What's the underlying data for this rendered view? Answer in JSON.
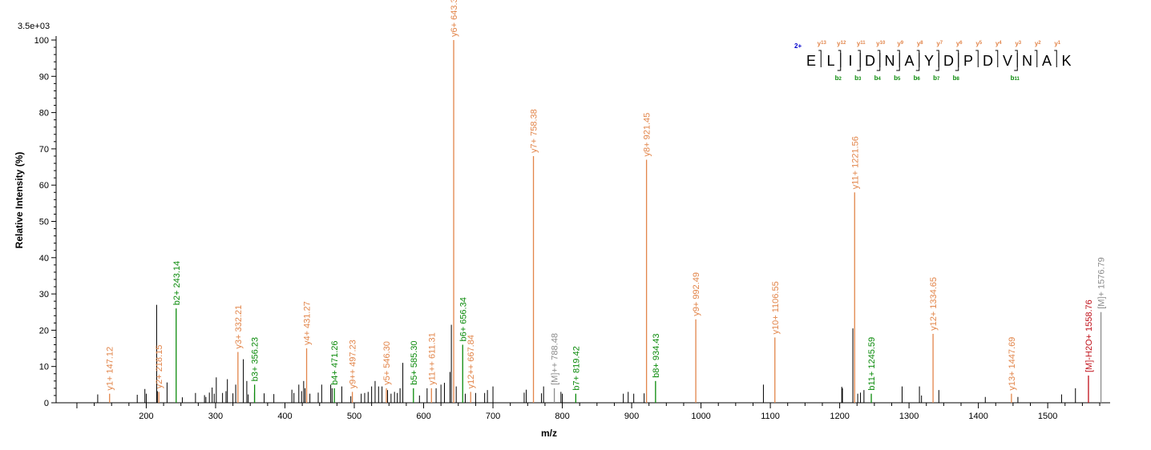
{
  "chart_data": {
    "type": "bar",
    "title": "",
    "xlabel": "m/z",
    "ylabel": "Relative   Intensity (%)",
    "scale_label": "3.5e+03",
    "xlim": [
      70,
      1590
    ],
    "ylim": [
      0,
      100
    ],
    "x_ticks": [
      200,
      300,
      400,
      500,
      600,
      700,
      800,
      900,
      1000,
      1100,
      1200,
      1300,
      1400,
      1500
    ],
    "y_ticks": [
      0,
      10,
      20,
      30,
      40,
      50,
      60,
      70,
      80,
      90,
      100
    ],
    "colors": {
      "y": "#e2854a",
      "b": "#0a8a0a",
      "precursor": "#8c8c8c",
      "neutral_loss": "#c0101a",
      "unassigned": "#000000"
    },
    "annotated_peaks": [
      {
        "mz": 147.12,
        "intensity": 2.5,
        "type": "y",
        "label": "y1+ 147.12"
      },
      {
        "mz": 218.15,
        "intensity": 3.0,
        "type": "y",
        "label": "y2+ 218.15"
      },
      {
        "mz": 243.14,
        "intensity": 26.0,
        "type": "b",
        "label": "b2+ 243.14"
      },
      {
        "mz": 332.21,
        "intensity": 14.0,
        "type": "y",
        "label": "y3+ 332.21"
      },
      {
        "mz": 356.23,
        "intensity": 5.0,
        "type": "b",
        "label": "b3+ 356.23"
      },
      {
        "mz": 431.27,
        "intensity": 15.0,
        "type": "y",
        "label": "y4+ 431.27"
      },
      {
        "mz": 471.26,
        "intensity": 4.0,
        "type": "b",
        "label": "b4+ 471.26"
      },
      {
        "mz": 497.23,
        "intensity": 3.0,
        "type": "y",
        "label": "y9++ 497.23"
      },
      {
        "mz": 546.3,
        "intensity": 4.0,
        "type": "y",
        "label": "y5+ 546.30"
      },
      {
        "mz": 585.3,
        "intensity": 4.0,
        "type": "b",
        "label": "b5+ 585.30"
      },
      {
        "mz": 611.31,
        "intensity": 4.0,
        "type": "y",
        "label": "y11++ 611.31"
      },
      {
        "mz": 643.35,
        "intensity": 100.0,
        "type": "y",
        "label": "y6+ 643.35"
      },
      {
        "mz": 656.34,
        "intensity": 16.0,
        "type": "b",
        "label": "b6+ 656.34"
      },
      {
        "mz": 667.84,
        "intensity": 3.0,
        "type": "y",
        "label": "y12++ 667.84"
      },
      {
        "mz": 758.38,
        "intensity": 68.0,
        "type": "y",
        "label": "y7+ 758.38"
      },
      {
        "mz": 788.48,
        "intensity": 4.0,
        "type": "precursor",
        "label": "[M]++ 788.48"
      },
      {
        "mz": 819.42,
        "intensity": 2.5,
        "type": "b",
        "label": "b7+ 819.42"
      },
      {
        "mz": 921.45,
        "intensity": 67.0,
        "type": "y",
        "label": "y8+ 921.45"
      },
      {
        "mz": 934.43,
        "intensity": 6.0,
        "type": "b",
        "label": "b8+ 934.43"
      },
      {
        "mz": 992.49,
        "intensity": 23.0,
        "type": "y",
        "label": "y9+ 992.49"
      },
      {
        "mz": 1106.55,
        "intensity": 18.0,
        "type": "y",
        "label": "y10+ 1106.55"
      },
      {
        "mz": 1221.56,
        "intensity": 58.0,
        "type": "y",
        "label": "y11+ 1221.56"
      },
      {
        "mz": 1245.59,
        "intensity": 2.5,
        "type": "b",
        "label": "b11+ 1245.59"
      },
      {
        "mz": 1334.65,
        "intensity": 19.0,
        "type": "y",
        "label": "y12+ 1334.65"
      },
      {
        "mz": 1447.69,
        "intensity": 2.5,
        "type": "y",
        "label": "y13+ 1447.69"
      },
      {
        "mz": 1558.76,
        "intensity": 7.5,
        "type": "neutral_loss",
        "label": "[M]-H2O+ 1558.76"
      },
      {
        "mz": 1576.79,
        "intensity": 25.0,
        "type": "precursor",
        "label": "[M]+ 1576.79"
      }
    ],
    "unassigned_peaks": [
      {
        "mz": 130,
        "intensity": 2.3
      },
      {
        "mz": 187,
        "intensity": 2.2
      },
      {
        "mz": 198,
        "intensity": 3.8
      },
      {
        "mz": 200,
        "intensity": 2.5
      },
      {
        "mz": 215,
        "intensity": 27.0
      },
      {
        "mz": 216,
        "intensity": 3.2
      },
      {
        "mz": 230,
        "intensity": 5.6
      },
      {
        "mz": 252,
        "intensity": 1.5
      },
      {
        "mz": 271,
        "intensity": 2.7
      },
      {
        "mz": 284,
        "intensity": 2.1
      },
      {
        "mz": 286,
        "intensity": 1.6
      },
      {
        "mz": 291,
        "intensity": 2.8
      },
      {
        "mz": 295,
        "intensity": 4.2
      },
      {
        "mz": 298,
        "intensity": 2.5
      },
      {
        "mz": 301,
        "intensity": 7.0
      },
      {
        "mz": 310,
        "intensity": 2.7
      },
      {
        "mz": 315,
        "intensity": 3.2
      },
      {
        "mz": 317,
        "intensity": 6.5
      },
      {
        "mz": 325,
        "intensity": 2.6
      },
      {
        "mz": 329,
        "intensity": 5.0
      },
      {
        "mz": 340,
        "intensity": 12.0
      },
      {
        "mz": 345,
        "intensity": 6.0
      },
      {
        "mz": 347,
        "intensity": 2.3
      },
      {
        "mz": 356,
        "intensity": 2.8
      },
      {
        "mz": 370,
        "intensity": 2.6
      },
      {
        "mz": 384,
        "intensity": 2.4
      },
      {
        "mz": 410,
        "intensity": 3.6
      },
      {
        "mz": 413,
        "intensity": 2.7
      },
      {
        "mz": 420,
        "intensity": 5.0
      },
      {
        "mz": 424,
        "intensity": 3.2
      },
      {
        "mz": 427,
        "intensity": 6.0
      },
      {
        "mz": 429,
        "intensity": 4.0
      },
      {
        "mz": 436,
        "intensity": 2.5
      },
      {
        "mz": 448,
        "intensity": 2.8
      },
      {
        "mz": 453,
        "intensity": 5.0
      },
      {
        "mz": 466,
        "intensity": 5.0
      },
      {
        "mz": 468,
        "intensity": 4.0
      },
      {
        "mz": 482,
        "intensity": 4.5
      },
      {
        "mz": 495,
        "intensity": 1.8
      },
      {
        "mz": 510,
        "intensity": 2.5
      },
      {
        "mz": 515,
        "intensity": 2.7
      },
      {
        "mz": 520,
        "intensity": 3.0
      },
      {
        "mz": 525,
        "intensity": 4.5
      },
      {
        "mz": 530,
        "intensity": 6.0
      },
      {
        "mz": 535,
        "intensity": 4.5
      },
      {
        "mz": 540,
        "intensity": 4.5
      },
      {
        "mz": 548,
        "intensity": 3.5
      },
      {
        "mz": 553,
        "intensity": 2.5
      },
      {
        "mz": 558,
        "intensity": 3.0
      },
      {
        "mz": 562,
        "intensity": 2.7
      },
      {
        "mz": 566,
        "intensity": 4.0
      },
      {
        "mz": 570,
        "intensity": 11.0
      },
      {
        "mz": 594,
        "intensity": 2.0
      },
      {
        "mz": 605,
        "intensity": 4.0
      },
      {
        "mz": 618,
        "intensity": 4.0
      },
      {
        "mz": 625,
        "intensity": 5.0
      },
      {
        "mz": 630,
        "intensity": 5.5
      },
      {
        "mz": 638,
        "intensity": 8.5
      },
      {
        "mz": 640,
        "intensity": 21.5
      },
      {
        "mz": 647,
        "intensity": 4.5
      },
      {
        "mz": 660,
        "intensity": 2.5
      },
      {
        "mz": 675,
        "intensity": 2.7
      },
      {
        "mz": 688,
        "intensity": 2.7
      },
      {
        "mz": 692,
        "intensity": 3.5
      },
      {
        "mz": 700,
        "intensity": 4.5
      },
      {
        "mz": 745,
        "intensity": 2.8
      },
      {
        "mz": 748,
        "intensity": 3.6
      },
      {
        "mz": 770,
        "intensity": 2.6
      },
      {
        "mz": 773,
        "intensity": 4.5
      },
      {
        "mz": 798,
        "intensity": 3.0
      },
      {
        "mz": 800,
        "intensity": 2.5
      },
      {
        "mz": 888,
        "intensity": 2.5
      },
      {
        "mz": 895,
        "intensity": 3.0
      },
      {
        "mz": 903,
        "intensity": 2.5
      },
      {
        "mz": 918,
        "intensity": 2.6
      },
      {
        "mz": 1090,
        "intensity": 5.0
      },
      {
        "mz": 1203,
        "intensity": 4.4
      },
      {
        "mz": 1204,
        "intensity": 4.0
      },
      {
        "mz": 1219,
        "intensity": 20.5
      },
      {
        "mz": 1226,
        "intensity": 2.5
      },
      {
        "mz": 1230,
        "intensity": 2.8
      },
      {
        "mz": 1235,
        "intensity": 3.5
      },
      {
        "mz": 1290,
        "intensity": 4.5
      },
      {
        "mz": 1315,
        "intensity": 4.5
      },
      {
        "mz": 1318,
        "intensity": 2.0
      },
      {
        "mz": 1343,
        "intensity": 3.5
      },
      {
        "mz": 1410,
        "intensity": 1.6
      },
      {
        "mz": 1457,
        "intensity": 1.6
      },
      {
        "mz": 1520,
        "intensity": 2.3
      },
      {
        "mz": 1540,
        "intensity": 4.0
      }
    ],
    "sequence": {
      "charge": "2+",
      "residues": [
        "E",
        "L",
        "I",
        "D",
        "N",
        "A",
        "Y",
        "D",
        "P",
        "D",
        "V",
        "N",
        "A",
        "K"
      ],
      "y_ions": [
        {
          "label": "y",
          "number": "13",
          "after_index": 1
        },
        {
          "label": "y",
          "number": "12",
          "after_index": 2
        },
        {
          "label": "y",
          "number": "11",
          "after_index": 3
        },
        {
          "label": "y",
          "number": "10",
          "after_index": 4
        },
        {
          "label": "y",
          "number": "9",
          "after_index": 5
        },
        {
          "label": "y",
          "number": "8",
          "after_index": 6
        },
        {
          "label": "y",
          "number": "7",
          "after_index": 7
        },
        {
          "label": "y",
          "number": "6",
          "after_index": 8
        },
        {
          "label": "y",
          "number": "5",
          "after_index": 9
        },
        {
          "label": "y",
          "number": "4",
          "after_index": 10
        },
        {
          "label": "y",
          "number": "3",
          "after_index": 11
        },
        {
          "label": "y",
          "number": "2",
          "after_index": 12
        },
        {
          "label": "y",
          "number": "1",
          "after_index": 13
        }
      ],
      "b_ions": [
        {
          "label": "b",
          "number": "2",
          "after_index": 2
        },
        {
          "label": "b",
          "number": "3",
          "after_index": 3
        },
        {
          "label": "b",
          "number": "4",
          "after_index": 4
        },
        {
          "label": "b",
          "number": "5",
          "after_index": 5
        },
        {
          "label": "b",
          "number": "6",
          "after_index": 6
        },
        {
          "label": "b",
          "number": "7",
          "after_index": 7
        },
        {
          "label": "b",
          "number": "8",
          "after_index": 8
        },
        {
          "label": "b",
          "number": "11",
          "after_index": 11
        }
      ]
    }
  }
}
